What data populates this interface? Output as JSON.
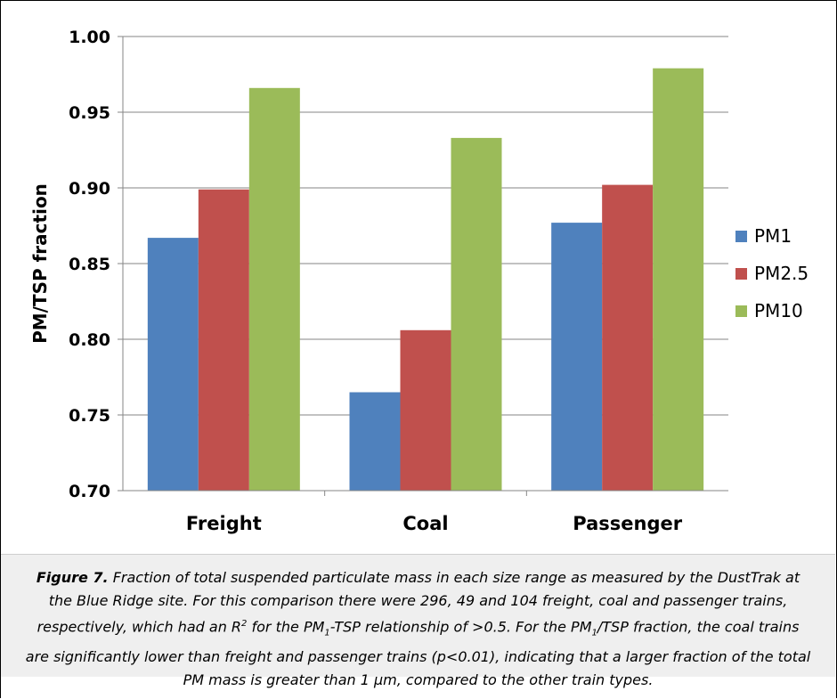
{
  "chart_data": {
    "type": "bar",
    "categories": [
      "Freight",
      "Coal",
      "Passenger"
    ],
    "series": [
      {
        "name": "PM1",
        "color": "#4f81bd",
        "values": [
          0.867,
          0.765,
          0.877
        ]
      },
      {
        "name": "PM2.5",
        "color": "#c0504d",
        "values": [
          0.899,
          0.806,
          0.902
        ]
      },
      {
        "name": "PM10",
        "color": "#9bbb59",
        "values": [
          0.966,
          0.933,
          0.979
        ]
      }
    ],
    "ylabel": "PM/TSP fraction",
    "ylim": [
      0.7,
      1.0
    ],
    "yticks": [
      "0.70",
      "0.75",
      "0.80",
      "0.85",
      "0.90",
      "0.95",
      "1.00"
    ],
    "grid": true,
    "legend_position": "right"
  },
  "caption": {
    "label": "Figure 7.",
    "text_1": " Fraction of total suspended particulate mass in each size range as measured by the DustTrak at the Blue Ridge site. For this comparison there were 296, 49 and 104 freight, coal and passenger trains, respectively, which had an R",
    "sup_2": "2",
    "text_2": " for the PM",
    "sub_1a": "1",
    "text_3": "-TSP relationship of >0.5. For the PM",
    "sub_1b": "1",
    "text_4": "/TSP fraction, the coal trains are significantly lower than freight and passenger trains (p<0.01), indicating that a larger fraction of the total PM mass is greater than 1 µm, compared to the other train types."
  }
}
